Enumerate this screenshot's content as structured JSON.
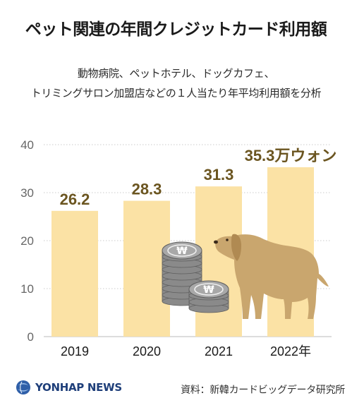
{
  "title": "ペット関連の年間クレジットカード利用額",
  "subtitle_line1": "動物病院、ペットホテル、ドッグカフェ、",
  "subtitle_line2": "トリミングサロン加盟店などの１人当たり年平均利用額を分析",
  "footer": {
    "logo_text": "YONHAP NEWS",
    "source": "資料：新韓カードビッグデータ研究所"
  },
  "colors": {
    "bar": "#fbe2a5",
    "value_label": "#6b5520",
    "axis_text": "#666666",
    "grid": "#bbbbbb",
    "coin": "#8a8a8a",
    "dog": "#c9a66e"
  },
  "chart_data": {
    "type": "bar",
    "categories": [
      "2019",
      "2020",
      "2021",
      "2022年"
    ],
    "values": [
      26.2,
      28.3,
      31.3,
      35.3
    ],
    "value_labels": [
      "26.2",
      "28.3",
      "31.3",
      "35.3万ウォン"
    ],
    "yticks": [
      0,
      10,
      20,
      30,
      40
    ],
    "ylim": [
      0,
      40
    ],
    "grid": true
  }
}
